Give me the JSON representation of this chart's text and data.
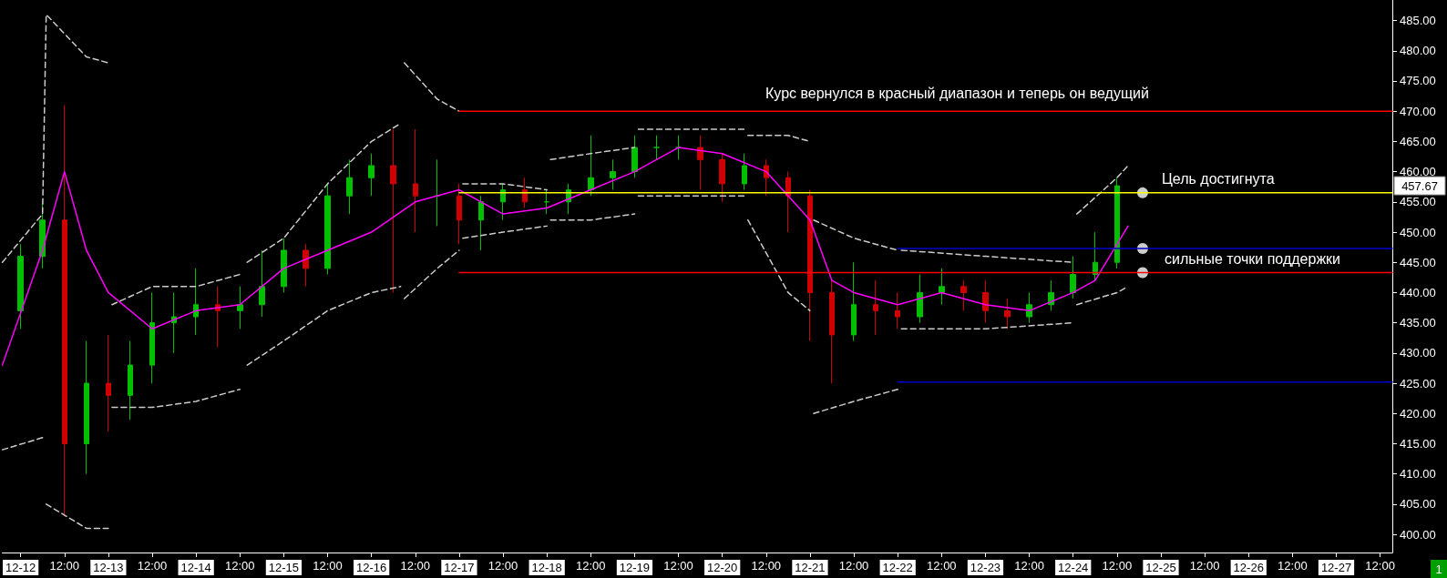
{
  "chart_data": {
    "type": "candlestick",
    "x": [
      "--12-12T00:00",
      "--12-12T06:00",
      "--12-12T12:00",
      "--12-12T18:00",
      "--12-13T00:00",
      "--12-13T06:00",
      "--12-13T12:00",
      "--12-13T18:00",
      "--12-14T00:00",
      "--12-14T06:00",
      "--12-14T12:00",
      "--12-14T18:00",
      "--12-15T00:00",
      "--12-15T06:00",
      "--12-15T12:00",
      "--12-15T18:00",
      "--12-16T00:00",
      "--12-16T06:00",
      "--12-16T12:00",
      "--12-16T18:00",
      "--12-17T00:00",
      "--12-17T06:00",
      "--12-17T12:00",
      "--12-17T18:00",
      "--12-18T00:00",
      "--12-18T06:00",
      "--12-18T12:00",
      "--12-18T18:00",
      "--12-19T00:00",
      "--12-19T06:00",
      "--12-19T12:00",
      "--12-19T18:00",
      "--12-20T00:00",
      "--12-20T06:00",
      "--12-20T12:00",
      "--12-20T18:00",
      "--12-21T00:00",
      "--12-21T06:00",
      "--12-21T12:00",
      "--12-21T18:00",
      "--12-22T00:00",
      "--12-22T06:00",
      "--12-22T12:00",
      "--12-22T18:00",
      "--12-23T00:00",
      "--12-23T06:00",
      "--12-23T12:00",
      "--12-23T18:00",
      "--12-24T00:00",
      "--12-24T06:00",
      "--12-24T12:00"
    ],
    "ohlc": [
      [
        437,
        448,
        434,
        446
      ],
      [
        446,
        455,
        444,
        452
      ],
      [
        452,
        471,
        403,
        415
      ],
      [
        415,
        432,
        410,
        425
      ],
      [
        425,
        433,
        417,
        423
      ],
      [
        423,
        432,
        419,
        428
      ],
      [
        428,
        440,
        425,
        435
      ],
      [
        435,
        440,
        430,
        436
      ],
      [
        436,
        444,
        433,
        438
      ],
      [
        438,
        441,
        431,
        437
      ],
      [
        437,
        441,
        434,
        438
      ],
      [
        438,
        447,
        436,
        441
      ],
      [
        441,
        449,
        440,
        447
      ],
      [
        447,
        448,
        441,
        444
      ],
      [
        444,
        458,
        443,
        456
      ],
      [
        456,
        462,
        453,
        459
      ],
      [
        459,
        463,
        456,
        461
      ],
      [
        461,
        467,
        440,
        458
      ],
      [
        458,
        467,
        450,
        456
      ],
      [
        456,
        462,
        451,
        456
      ],
      [
        456,
        458,
        448,
        452
      ],
      [
        452,
        456,
        447,
        455
      ],
      [
        455,
        458,
        452,
        457
      ],
      [
        457,
        459,
        454,
        455
      ],
      [
        455,
        457,
        453,
        455
      ],
      [
        455,
        458,
        453,
        457
      ],
      [
        457,
        466,
        456,
        459
      ],
      [
        459,
        462,
        457,
        460
      ],
      [
        460,
        466,
        459,
        464
      ],
      [
        464,
        466,
        462,
        464
      ],
      [
        464,
        466,
        462,
        464
      ],
      [
        464,
        466,
        457,
        462
      ],
      [
        462,
        463,
        455,
        458
      ],
      [
        458,
        463,
        457,
        461
      ],
      [
        461,
        462,
        456,
        459
      ],
      [
        459,
        460,
        450,
        456
      ],
      [
        456,
        457,
        432,
        440
      ],
      [
        440,
        442,
        425,
        433
      ],
      [
        433,
        445,
        432,
        438
      ],
      [
        438,
        442,
        433,
        437
      ],
      [
        437,
        440,
        434,
        436
      ],
      [
        436,
        443,
        435,
        440
      ],
      [
        440,
        444,
        438,
        441
      ],
      [
        441,
        442,
        437,
        440
      ],
      [
        440,
        442,
        435,
        437
      ],
      [
        437,
        439,
        434,
        436
      ],
      [
        436,
        440,
        435,
        438
      ],
      [
        438,
        442,
        437,
        440
      ],
      [
        440,
        446,
        439,
        443
      ],
      [
        443,
        450,
        442,
        445
      ],
      [
        445,
        459,
        444,
        457.67
      ]
    ],
    "colors": [
      "#00c000",
      "#00c000",
      "#d00000",
      "#00c000",
      "#d00000",
      "#00c000",
      "#00c000",
      "#00c000",
      "#00c000",
      "#d00000",
      "#00c000",
      "#00c000",
      "#00c000",
      "#d00000",
      "#00c000",
      "#00c000",
      "#00c000",
      "#d00000",
      "#d00000",
      "#00c000",
      "#d00000",
      "#00c000",
      "#00c000",
      "#d00000",
      "#00c000",
      "#00c000",
      "#00c000",
      "#00c000",
      "#00c000",
      "#00c000",
      "#00c000",
      "#d00000",
      "#d00000",
      "#00c000",
      "#d00000",
      "#d00000",
      "#d00000",
      "#d00000",
      "#00c000",
      "#d00000",
      "#d00000",
      "#00c000",
      "#00c000",
      "#d00000",
      "#d00000",
      "#d00000",
      "#00c000",
      "#00c000",
      "#00c000",
      "#00c000",
      "#00c000"
    ],
    "series": [
      {
        "type": "line",
        "color": "#ff00ff",
        "line_style": "solid",
        "x": [
          "--12-11T19:00",
          "--12-12T06:00",
          "--12-12T12:00",
          "--12-12T18:00",
          "--12-13T00:00",
          "--12-13T12:00",
          "--12-14T00:00",
          "--12-14T12:00",
          "--12-15T00:00",
          "--12-15T12:00",
          "--12-16T00:00",
          "--12-16T12:00",
          "--12-17T00:00",
          "--12-17T12:00",
          "--12-18T00:00",
          "--12-18T12:00",
          "--12-19T00:00",
          "--12-19T12:00",
          "--12-20T00:00",
          "--12-20T12:00",
          "--12-21T00:00",
          "--12-21T06:00",
          "--12-21T12:00",
          "--12-22T00:00",
          "--12-22T12:00",
          "--12-23T00:00",
          "--12-23T12:00",
          "--12-24T00:00",
          "--12-24T06:00",
          "--12-24T12:00",
          "--12-24T15:00"
        ],
        "values": [
          428,
          447,
          460,
          447,
          440,
          434,
          437,
          438,
          444,
          447,
          450,
          455,
          457,
          453,
          454,
          457,
          460,
          464,
          463,
          460,
          452,
          442,
          440,
          438,
          440,
          438,
          437,
          440,
          442,
          448,
          451
        ]
      },
      {
        "type": "line",
        "color": "#cccccc",
        "line_style": "dashed",
        "x": [
          "--12-11T19:00",
          "--12-12T06:00",
          "--12-12T07:00",
          "--12-12T18:00",
          "--12-13T00:00",
          "--12-13T00:30",
          "--12-13T01:00",
          "--12-13T12:00",
          "--12-14T00:00",
          "--12-14T12:00",
          "--12-14T13:00",
          "--12-14T14:00",
          "--12-15T00:00",
          "--12-15T12:00",
          "--12-16T00:00",
          "--12-16T08:00",
          "--12-16T08:30",
          "--12-16T09:00",
          "--12-16T18:00",
          "--12-17T00:00",
          "--12-17T00:30",
          "--12-17T01:00",
          "--12-17T12:00",
          "--12-18T00:00",
          "--12-18T00:30",
          "--12-18T01:00",
          "--12-18T12:00",
          "--12-19T00:00",
          "--12-19T00:30",
          "--12-19T01:00",
          "--12-19T12:00",
          "--12-20T06:00",
          "--12-20T06:30",
          "--12-20T07:00",
          "--12-20T18:00",
          "--12-21T00:00",
          "--12-21T00:30",
          "--12-21T01:00",
          "--12-21T12:00",
          "--12-22T00:00",
          "--12-22T00:30",
          "--12-22T01:00",
          "--12-23T00:00",
          "--12-24T00:00",
          "--12-24T00:30",
          "--12-24T01:00",
          "--12-24T12:00",
          "--12-24T15:00"
        ],
        "values": [
          445,
          453,
          486,
          479,
          478,
          null,
          438,
          441,
          441,
          443,
          null,
          445,
          449,
          458,
          465,
          468,
          null,
          478,
          472,
          470,
          null,
          458,
          458,
          457,
          null,
          462,
          463,
          464,
          null,
          467,
          467,
          467,
          null,
          466,
          466,
          465,
          null,
          452,
          449,
          447,
          null,
          447,
          446,
          445,
          null,
          453,
          459,
          461
        ]
      },
      {
        "type": "line",
        "color": "#cccccc",
        "line_style": "dashed",
        "x": [
          "--12-11T19:00",
          "--12-12T06:00",
          "--12-12T06:30",
          "--12-12T07:00",
          "--12-12T18:00",
          "--12-13T00:00",
          "--12-13T00:30",
          "--12-13T01:00",
          "--12-13T12:00",
          "--12-14T00:00",
          "--12-14T12:00",
          "--12-14T13:00",
          "--12-14T14:00",
          "--12-15T00:00",
          "--12-15T12:00",
          "--12-16T00:00",
          "--12-16T08:00",
          "--12-16T08:30",
          "--12-16T09:00",
          "--12-16T18:00",
          "--12-17T00:00",
          "--12-17T00:30",
          "--12-17T01:00",
          "--12-17T12:00",
          "--12-18T00:00",
          "--12-18T00:30",
          "--12-18T01:00",
          "--12-18T12:00",
          "--12-19T00:00",
          "--12-19T00:30",
          "--12-19T01:00",
          "--12-19T12:00",
          "--12-20T06:00",
          "--12-20T06:30",
          "--12-20T07:00",
          "--12-20T18:00",
          "--12-21T00:00",
          "--12-21T00:30",
          "--12-21T01:00",
          "--12-21T12:00",
          "--12-22T00:00",
          "--12-22T00:30",
          "--12-22T01:00",
          "--12-23T00:00",
          "--12-24T00:00",
          "--12-24T00:30",
          "--12-24T01:00",
          "--12-24T12:00",
          "--12-24T15:00"
        ],
        "values": [
          414,
          416,
          null,
          405,
          401,
          401,
          null,
          421,
          421,
          422,
          424,
          null,
          428,
          432,
          437,
          440,
          441,
          null,
          439,
          444,
          447,
          null,
          449,
          450,
          451,
          null,
          452,
          452,
          453,
          null,
          456,
          456,
          456,
          null,
          452,
          440,
          437,
          null,
          420,
          422,
          424,
          null,
          434,
          434,
          435,
          null,
          438,
          440,
          441
        ]
      },
      {
        "type": "line",
        "color": "#ff0000",
        "line_style": "solid",
        "x": [
          "--12-17T00:00",
          "--12-27T15:20"
        ],
        "values": [
          470,
          470
        ]
      },
      {
        "type": "line",
        "color": "#ff0000",
        "line_style": "solid",
        "x": [
          "--12-17T00:00",
          "--12-27T15:20"
        ],
        "values": [
          443.3,
          443.3
        ]
      },
      {
        "type": "line",
        "color": "#ffff00",
        "line_style": "solid",
        "x": [
          "--12-17T00:00",
          "--12-27T15:20"
        ],
        "values": [
          456.5,
          456.5
        ]
      },
      {
        "type": "line",
        "color": "#0000cc",
        "line_style": "solid",
        "x": [
          "--12-22T00:00",
          "--12-27T15:20"
        ],
        "values": [
          447.3,
          447.3
        ]
      },
      {
        "type": "line",
        "color": "#0000cc",
        "line_style": "solid",
        "x": [
          "--12-22T00:00",
          "--12-27T15:20"
        ],
        "values": [
          425.2,
          425.2
        ]
      },
      {
        "type": "scatter",
        "color": "#ffffff",
        "marker": "circle",
        "x": [
          "--12-24T19:00",
          "--12-24T19:00",
          "--12-24T19:00"
        ],
        "values": [
          456.5,
          447.3,
          443.3
        ]
      }
    ],
    "annotations": [
      "Курс вернулся в красный диапазон и теперь он ведущий",
      "Цель достигнута",
      "сильные точки поддержки",
      "457.67",
      "1"
    ],
    "xlim": [
      "--12-11T19:00",
      "--12-27T15:20"
    ],
    "xticks": [
      {
        "value": "--12-12T00:00",
        "label": "12-12"
      },
      {
        "value": "--12-12T12:00",
        "label": "12:00"
      },
      {
        "value": "--12-13T00:00",
        "label": "12-13"
      },
      {
        "value": "--12-13T12:00",
        "label": "12:00"
      },
      {
        "value": "--12-14T00:00",
        "label": "12-14"
      },
      {
        "value": "--12-14T12:00",
        "label": "12:00"
      },
      {
        "value": "--12-15T00:00",
        "label": "12-15"
      },
      {
        "value": "--12-15T12:00",
        "label": "12:00"
      },
      {
        "value": "--12-16T00:00",
        "label": "12-16"
      },
      {
        "value": "--12-16T12:00",
        "label": "12:00"
      },
      {
        "value": "--12-17T00:00",
        "label": "12-17"
      },
      {
        "value": "--12-17T12:00",
        "label": "12:00"
      },
      {
        "value": "--12-18T00:00",
        "label": "12-18"
      },
      {
        "value": "--12-18T12:00",
        "label": "12:00"
      },
      {
        "value": "--12-19T00:00",
        "label": "12-19"
      },
      {
        "value": "--12-19T12:00",
        "label": "12:00"
      },
      {
        "value": "--12-20T00:00",
        "label": "12-20"
      },
      {
        "value": "--12-20T12:00",
        "label": "12:00"
      },
      {
        "value": "--12-21T00:00",
        "label": "12-21"
      },
      {
        "value": "--12-21T12:00",
        "label": "12:00"
      },
      {
        "value": "--12-22T00:00",
        "label": "12-22"
      },
      {
        "value": "--12-22T12:00",
        "label": "12:00"
      },
      {
        "value": "--12-23T00:00",
        "label": "12-23"
      },
      {
        "value": "--12-23T12:00",
        "label": "12:00"
      },
      {
        "value": "--12-24T00:00",
        "label": "12-24"
      },
      {
        "value": "--12-24T12:00",
        "label": "12:00"
      },
      {
        "value": "--12-25T00:00",
        "label": "12-25"
      },
      {
        "value": "--12-25T12:00",
        "label": "12:00"
      },
      {
        "value": "--12-26T00:00",
        "label": "12-26"
      },
      {
        "value": "--12-26T12:00",
        "label": "12:00"
      },
      {
        "value": "--12-27T00:00",
        "label": "12-27"
      },
      {
        "value": "--12-27T12:00",
        "label": "12:00"
      }
    ],
    "ylim": [
      397,
      488.4
    ],
    "yticks": [
      {
        "value": 400,
        "label": "400.00"
      },
      {
        "value": 405,
        "label": "405.00"
      },
      {
        "value": 410,
        "label": "410.00"
      },
      {
        "value": 415,
        "label": "415.00"
      },
      {
        "value": 420,
        "label": "420.00"
      },
      {
        "value": 425,
        "label": "425.00"
      },
      {
        "value": 430,
        "label": "430.00"
      },
      {
        "value": 435,
        "label": "435.00"
      },
      {
        "value": 440,
        "label": "440.00"
      },
      {
        "value": 445,
        "label": "445.00"
      },
      {
        "value": 450,
        "label": "450.00"
      },
      {
        "value": 455,
        "label": "455.00"
      },
      {
        "value": 460,
        "label": "460.00"
      },
      {
        "value": 465,
        "label": "465.00"
      },
      {
        "value": 470,
        "label": "470.00"
      },
      {
        "value": 475,
        "label": "475.00"
      },
      {
        "value": 480,
        "label": "480.00"
      },
      {
        "value": 485,
        "label": "485.00"
      }
    ]
  }
}
